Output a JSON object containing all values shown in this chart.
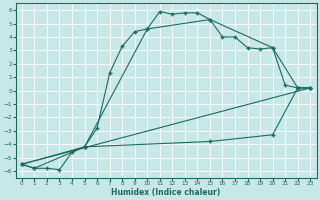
{
  "xlabel": "Humidex (Indice chaleur)",
  "bg_color": "#c8e8e8",
  "grid_color": "#ffffff",
  "line_color": "#1a6b5e",
  "xlim": [
    -0.5,
    23.5
  ],
  "ylim": [
    -6.5,
    6.5
  ],
  "xticks": [
    0,
    1,
    2,
    3,
    4,
    5,
    6,
    7,
    8,
    9,
    10,
    11,
    12,
    13,
    14,
    15,
    16,
    17,
    18,
    19,
    20,
    21,
    22,
    23
  ],
  "yticks": [
    -6,
    -5,
    -4,
    -3,
    -2,
    -1,
    0,
    1,
    2,
    3,
    4,
    5,
    6
  ],
  "line1_x": [
    0,
    1,
    2,
    3,
    4,
    5,
    6,
    7,
    8,
    9,
    10,
    11,
    12,
    13,
    14,
    15,
    16,
    17,
    18,
    19,
    20,
    21,
    22,
    23
  ],
  "line1_y": [
    -5.5,
    -5.8,
    -5.8,
    -5.9,
    -4.6,
    -4.2,
    -2.8,
    1.3,
    3.3,
    4.4,
    4.6,
    5.9,
    5.7,
    5.8,
    5.8,
    5.3,
    4.0,
    4.0,
    3.2,
    3.1,
    3.2,
    0.4,
    0.2,
    0.2
  ],
  "line2_x": [
    0,
    1,
    5,
    10,
    15,
    20,
    22,
    23
  ],
  "line2_y": [
    -5.5,
    -5.8,
    -4.2,
    4.6,
    5.3,
    3.2,
    0.2,
    0.2
  ],
  "line3_x": [
    0,
    5,
    15,
    20,
    22,
    23
  ],
  "line3_y": [
    -5.5,
    -4.2,
    -3.8,
    -3.3,
    0.2,
    0.2
  ],
  "line4_x": [
    0,
    23
  ],
  "line4_y": [
    -5.5,
    0.2
  ]
}
